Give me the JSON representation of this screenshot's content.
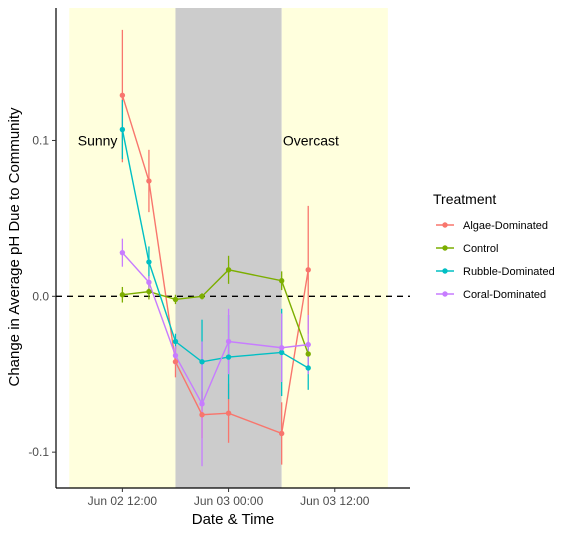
{
  "chart_data": {
    "type": "line",
    "title": "",
    "xlabel": "Date & Time",
    "ylabel": "Change in Average pH Due to Community",
    "x_ticks": [
      "Jun 02 12:00",
      "Jun 03 00:00",
      "Jun 03 12:00"
    ],
    "x_tick_hours": [
      0,
      12,
      24
    ],
    "xlim_hours": [
      -7.5,
      32.5
    ],
    "y_ticks": [
      "-0.1",
      "0.0",
      "0.1"
    ],
    "y_tick_values": [
      -0.1,
      0.0,
      0.1
    ],
    "ylim": [
      -0.123,
      0.185
    ],
    "reference_line": {
      "y": 0.0,
      "style": "dashed"
    },
    "grid": false,
    "background_bands": [
      {
        "start_hours": -6,
        "end_hours": 6,
        "color": "#ffffdd"
      },
      {
        "start_hours": 6,
        "end_hours": 18,
        "color": "#cccccc"
      },
      {
        "start_hours": 18,
        "end_hours": 30,
        "color": "#ffffdd"
      }
    ],
    "annotations": [
      {
        "text": "Sunny",
        "x_hours": -2.8,
        "y": 0.1
      },
      {
        "text": "Overcast",
        "x_hours": 21.3,
        "y": 0.1
      }
    ],
    "legend": {
      "title": "Treatment",
      "position": "right"
    },
    "series": [
      {
        "name": "Algae-Dominated",
        "color": "#F8766D",
        "x_hours": [
          0,
          3,
          6,
          9,
          12,
          18,
          21
        ],
        "y": [
          0.129,
          0.074,
          -0.042,
          -0.076,
          -0.075,
          -0.088,
          0.017
        ],
        "ymin": [
          0.086,
          0.054,
          -0.052,
          -0.091,
          -0.094,
          -0.108,
          -0.024
        ],
        "ymax": [
          0.171,
          0.094,
          -0.032,
          -0.061,
          -0.056,
          -0.068,
          0.058
        ]
      },
      {
        "name": "Control",
        "color": "#7CAE00",
        "x_hours": [
          0,
          3,
          6,
          9,
          12,
          18,
          21
        ],
        "y": [
          0.001,
          0.003,
          -0.002,
          0.0,
          0.017,
          0.01,
          -0.037
        ],
        "ymin": [
          -0.004,
          -0.002,
          -0.005,
          -0.002,
          0.008,
          0.004,
          -0.045
        ],
        "ymax": [
          0.006,
          0.008,
          0.001,
          0.002,
          0.026,
          0.016,
          -0.029
        ]
      },
      {
        "name": "Rubble-Dominated",
        "color": "#00BFC4",
        "x_hours": [
          0,
          3,
          6,
          9,
          12,
          18,
          21
        ],
        "y": [
          0.107,
          0.022,
          -0.029,
          -0.042,
          -0.039,
          -0.036,
          -0.046
        ],
        "ymin": [
          0.088,
          0.012,
          -0.034,
          -0.069,
          -0.066,
          -0.064,
          -0.06
        ],
        "ymax": [
          0.126,
          0.032,
          -0.024,
          -0.015,
          -0.012,
          -0.008,
          -0.032
        ]
      },
      {
        "name": "Coral-Dominated",
        "color": "#C77CFF",
        "x_hours": [
          0,
          3,
          6,
          9,
          12,
          18,
          21
        ],
        "y": [
          0.028,
          0.009,
          -0.038,
          -0.069,
          -0.029,
          -0.033,
          -0.031
        ],
        "ymin": [
          0.019,
          0.005,
          -0.044,
          -0.109,
          -0.05,
          -0.055,
          -0.05
        ],
        "ymax": [
          0.037,
          0.013,
          -0.032,
          -0.029,
          -0.008,
          -0.011,
          -0.012
        ]
      }
    ]
  }
}
